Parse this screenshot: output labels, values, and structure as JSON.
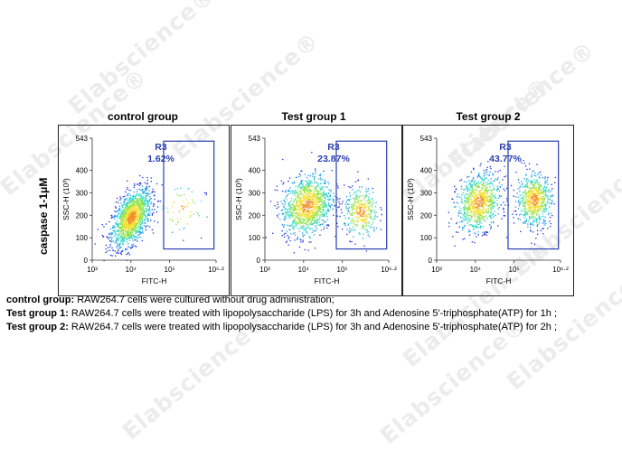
{
  "watermark_text": "Elabscience®",
  "row_label": "caspase 1-1μM",
  "chart_data": [
    {
      "type": "scatter",
      "title": "control group",
      "xlabel": "FITC-H",
      "ylabel": "SSC-H (10³)",
      "x_scale": "log",
      "xlim": [
        1000,
        1584893
      ],
      "ylim": [
        0,
        543
      ],
      "x_ticks": [
        "10³",
        "10⁴",
        "10⁵",
        "10⁶·²"
      ],
      "y_ticks": [
        "0",
        "100",
        "200",
        "300",
        "400",
        "543"
      ],
      "gate": {
        "name": "R3",
        "percent": "1.62%",
        "x_range": [
          70000,
          1400000
        ],
        "y_range": [
          50,
          530
        ]
      },
      "populations": [
        {
          "x_center": 10000,
          "y_center": 190,
          "x_spread_decades": 0.25,
          "y_spread": 55,
          "tilt": 0.6,
          "weight": 0.96
        },
        {
          "x_center": 200000,
          "y_center": 230,
          "x_spread_decades": 0.3,
          "y_spread": 60,
          "tilt": 0.0,
          "weight": 0.04
        }
      ]
    },
    {
      "type": "scatter",
      "title": "Test group 1",
      "xlabel": "FITC-H",
      "ylabel": "SSC-H (10³)",
      "x_scale": "log",
      "xlim": [
        1000,
        1584893
      ],
      "ylim": [
        0,
        543
      ],
      "x_ticks": [
        "10³",
        "10⁴",
        "10⁵",
        "10⁶·²"
      ],
      "y_ticks": [
        "0",
        "100",
        "200",
        "300",
        "400",
        "543"
      ],
      "gate": {
        "name": "R3",
        "percent": "23.87%",
        "x_range": [
          70000,
          1400000
        ],
        "y_range": [
          50,
          530
        ]
      },
      "populations": [
        {
          "x_center": 12000,
          "y_center": 245,
          "x_spread_decades": 0.32,
          "y_spread": 65,
          "tilt": 0.2,
          "weight": 0.76
        },
        {
          "x_center": 300000,
          "y_center": 215,
          "x_spread_decades": 0.22,
          "y_spread": 55,
          "tilt": 0.0,
          "weight": 0.24
        }
      ]
    },
    {
      "type": "scatter",
      "title": "Test group 2",
      "xlabel": "FITC-H",
      "ylabel": "SSC-H (10³)",
      "x_scale": "log",
      "xlim": [
        1000,
        1584893
      ],
      "ylim": [
        0,
        543
      ],
      "x_ticks": [
        "10³",
        "10⁴",
        "10⁵",
        "10⁶·²"
      ],
      "y_ticks": [
        "0",
        "100",
        "200",
        "300",
        "400",
        "543"
      ],
      "gate": {
        "name": "R3",
        "percent": "43.77%",
        "x_range": [
          70000,
          1400000
        ],
        "y_range": [
          50,
          530
        ]
      },
      "populations": [
        {
          "x_center": 12000,
          "y_center": 260,
          "x_spread_decades": 0.28,
          "y_spread": 62,
          "tilt": 0.2,
          "weight": 0.56
        },
        {
          "x_center": 320000,
          "y_center": 270,
          "x_spread_decades": 0.22,
          "y_spread": 58,
          "tilt": 0.0,
          "weight": 0.44
        }
      ]
    }
  ],
  "captions": [
    {
      "label": "control group:",
      "text": " RAW264.7 cells were cultured without drug administration;"
    },
    {
      "label": "Test group 1:",
      "text": " RAW264.7 cells were treated with lipopolysaccharide (LPS) for 3h and Adenosine 5'-triphosphate(ATP) for 1h ;"
    },
    {
      "label": "Test group 2:",
      "text": " RAW264.7 cells were treated with lipopolysaccharide (LPS) for 3h and Adenosine 5'-triphosphate(ATP) for 2h ;"
    }
  ],
  "colors": {
    "gate": "#2b3fb0",
    "density_scale": [
      "#1a2ad9",
      "#1c9be8",
      "#2fd6c8",
      "#8fe34a",
      "#f3e030",
      "#f5902a",
      "#e0231f"
    ],
    "watermark": "#ececec"
  }
}
